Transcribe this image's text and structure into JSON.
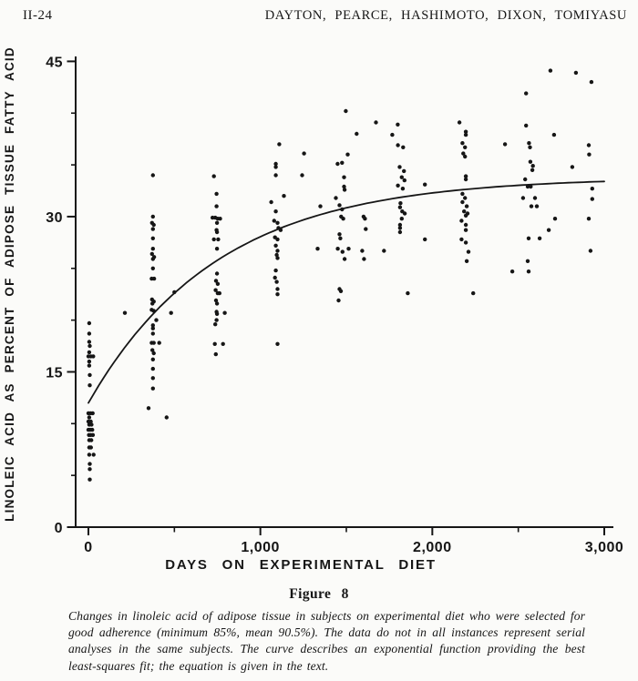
{
  "page": {
    "page_number": "II-24",
    "running_head": "DAYTON, PEARCE, HASHIMOTO, DIXON, TOMIYASU"
  },
  "figure": {
    "label": "Figure 8",
    "caption": "Changes in linoleic acid of adipose tissue in subjects on experimental diet who were selected for good adherence (minimum 85%, mean 90.5%). The data do not in all instances represent serial analyses in the same subjects. The curve describes an exponential function providing the best least-squares fit; the equation is given in the text."
  },
  "chart_data": {
    "type": "scatter",
    "title": "",
    "xlabel": "DAYS ON EXPERIMENTAL DIET",
    "ylabel": "LINOLEIC ACID AS PERCENT OF ADIPOSE TISSUE FATTY ACID",
    "xlim": [
      0,
      3000
    ],
    "ylim": [
      0,
      45
    ],
    "x_ticks": [
      0,
      1000,
      2000,
      3000
    ],
    "x_tick_labels": [
      "0",
      "1,000",
      "2,000",
      "3,000"
    ],
    "x_minor_ticks": [
      500,
      1500,
      2500
    ],
    "y_ticks": [
      0,
      15,
      30,
      45
    ],
    "y_tick_labels": [
      "0",
      "15",
      "30",
      "45"
    ],
    "y_minor_ticks": [
      5,
      10,
      20,
      25,
      35,
      40
    ],
    "grid": false,
    "legend": "none",
    "ink_color": "#161616",
    "marker_radius": 2.2,
    "curve": {
      "type": "exponential",
      "formula": "y = 33.8 - 21.8 * exp(-x / 750)",
      "a": 33.8,
      "b": 21.8,
      "tau": 750,
      "x_start": 0,
      "x_end": 3000
    },
    "points": [
      [
        5,
        19.7
      ],
      [
        5,
        18.7
      ],
      [
        5,
        17.9
      ],
      [
        8,
        17.5
      ],
      [
        5,
        16.9
      ],
      [
        0,
        16.5
      ],
      [
        14,
        16.5
      ],
      [
        28,
        16.5
      ],
      [
        5,
        16.0
      ],
      [
        5,
        15.6
      ],
      [
        8,
        14.7
      ],
      [
        8,
        13.7
      ],
      [
        0,
        11.0
      ],
      [
        12,
        11.0
      ],
      [
        25,
        11.0
      ],
      [
        5,
        10.6
      ],
      [
        0,
        10.2
      ],
      [
        14,
        10.2
      ],
      [
        5,
        9.9
      ],
      [
        18,
        9.9
      ],
      [
        0,
        9.4
      ],
      [
        10,
        9.4
      ],
      [
        22,
        9.4
      ],
      [
        3,
        8.9
      ],
      [
        14,
        8.9
      ],
      [
        26,
        8.9
      ],
      [
        5,
        8.4
      ],
      [
        17,
        8.4
      ],
      [
        5,
        7.7
      ],
      [
        15,
        7.7
      ],
      [
        5,
        7.0
      ],
      [
        30,
        7.0
      ],
      [
        8,
        6.1
      ],
      [
        8,
        5.6
      ],
      [
        8,
        4.6
      ],
      [
        212,
        20.7
      ],
      [
        375,
        34.0
      ],
      [
        375,
        30.0
      ],
      [
        370,
        29.4
      ],
      [
        380,
        29.2
      ],
      [
        375,
        28.8
      ],
      [
        375,
        27.9
      ],
      [
        375,
        26.9
      ],
      [
        370,
        26.4
      ],
      [
        382,
        26.1
      ],
      [
        375,
        25.9
      ],
      [
        375,
        25.0
      ],
      [
        368,
        24.0
      ],
      [
        382,
        24.0
      ],
      [
        370,
        22.0
      ],
      [
        380,
        21.8
      ],
      [
        372,
        21.6
      ],
      [
        368,
        21.0
      ],
      [
        380,
        20.9
      ],
      [
        395,
        20.0
      ],
      [
        375,
        19.5
      ],
      [
        375,
        19.2
      ],
      [
        375,
        18.7
      ],
      [
        368,
        17.8
      ],
      [
        380,
        17.8
      ],
      [
        412,
        17.8
      ],
      [
        372,
        17.1
      ],
      [
        380,
        16.8
      ],
      [
        375,
        16.2
      ],
      [
        375,
        15.3
      ],
      [
        375,
        14.4
      ],
      [
        375,
        13.4
      ],
      [
        350,
        11.5
      ],
      [
        455,
        10.6
      ],
      [
        500,
        22.7
      ],
      [
        481,
        20.7
      ],
      [
        730,
        33.9
      ],
      [
        745,
        32.2
      ],
      [
        745,
        31.0
      ],
      [
        722,
        29.9
      ],
      [
        738,
        29.9
      ],
      [
        752,
        29.8
      ],
      [
        766,
        29.8
      ],
      [
        748,
        29.4
      ],
      [
        745,
        28.7
      ],
      [
        748,
        28.5
      ],
      [
        730,
        27.8
      ],
      [
        755,
        27.8
      ],
      [
        748,
        26.9
      ],
      [
        748,
        24.5
      ],
      [
        742,
        23.8
      ],
      [
        752,
        23.5
      ],
      [
        740,
        22.9
      ],
      [
        752,
        22.6
      ],
      [
        762,
        22.6
      ],
      [
        742,
        21.9
      ],
      [
        748,
        21.6
      ],
      [
        745,
        20.8
      ],
      [
        793,
        20.7
      ],
      [
        748,
        20.6
      ],
      [
        745,
        20.0
      ],
      [
        738,
        19.6
      ],
      [
        735,
        17.7
      ],
      [
        783,
        17.7
      ],
      [
        741,
        16.7
      ],
      [
        1110,
        37.0
      ],
      [
        1090,
        35.1
      ],
      [
        1090,
        34.8
      ],
      [
        1090,
        34.0
      ],
      [
        1137,
        32.0
      ],
      [
        1063,
        31.4
      ],
      [
        1090,
        30.5
      ],
      [
        1080,
        29.6
      ],
      [
        1100,
        29.4
      ],
      [
        1105,
        28.9
      ],
      [
        1118,
        28.7
      ],
      [
        1085,
        28.0
      ],
      [
        1100,
        27.8
      ],
      [
        1090,
        27.2
      ],
      [
        1100,
        26.7
      ],
      [
        1095,
        26.3
      ],
      [
        1100,
        26.0
      ],
      [
        1090,
        24.8
      ],
      [
        1085,
        24.1
      ],
      [
        1095,
        23.7
      ],
      [
        1100,
        23.0
      ],
      [
        1100,
        22.5
      ],
      [
        1100,
        17.7
      ],
      [
        1254,
        36.1
      ],
      [
        1243,
        34.0
      ],
      [
        1349,
        31.0
      ],
      [
        1333,
        26.9
      ],
      [
        1497,
        40.2
      ],
      [
        1560,
        38.0
      ],
      [
        1508,
        36.0
      ],
      [
        1475,
        35.2
      ],
      [
        1449,
        35.1
      ],
      [
        1487,
        33.8
      ],
      [
        1487,
        32.9
      ],
      [
        1490,
        32.6
      ],
      [
        1439,
        31.8
      ],
      [
        1460,
        31.1
      ],
      [
        1475,
        30.7
      ],
      [
        1470,
        30.0
      ],
      [
        1482,
        29.8
      ],
      [
        1460,
        28.3
      ],
      [
        1465,
        27.9
      ],
      [
        1450,
        26.9
      ],
      [
        1478,
        26.6
      ],
      [
        1490,
        25.9
      ],
      [
        1460,
        23.0
      ],
      [
        1468,
        22.8
      ],
      [
        1455,
        21.9
      ],
      [
        1672,
        39.1
      ],
      [
        1600,
        30.0
      ],
      [
        1608,
        29.8
      ],
      [
        1613,
        28.8
      ],
      [
        1513,
        26.9
      ],
      [
        1592,
        26.7
      ],
      [
        1719,
        26.7
      ],
      [
        1603,
        25.9
      ],
      [
        1799,
        38.9
      ],
      [
        1767,
        37.9
      ],
      [
        1800,
        36.9
      ],
      [
        1830,
        36.7
      ],
      [
        1810,
        34.8
      ],
      [
        1835,
        34.4
      ],
      [
        1822,
        33.8
      ],
      [
        1838,
        33.5
      ],
      [
        1800,
        33.0
      ],
      [
        1828,
        32.7
      ],
      [
        1815,
        31.3
      ],
      [
        1812,
        30.9
      ],
      [
        1825,
        30.5
      ],
      [
        1840,
        30.3
      ],
      [
        1822,
        29.8
      ],
      [
        1812,
        29.2
      ],
      [
        1812,
        28.9
      ],
      [
        1812,
        28.5
      ],
      [
        1857,
        22.6
      ],
      [
        1957,
        33.1
      ],
      [
        1957,
        27.8
      ],
      [
        2158,
        39.1
      ],
      [
        2195,
        38.2
      ],
      [
        2195,
        37.9
      ],
      [
        2175,
        37.1
      ],
      [
        2190,
        36.7
      ],
      [
        2180,
        36.1
      ],
      [
        2190,
        35.8
      ],
      [
        2195,
        33.9
      ],
      [
        2195,
        33.6
      ],
      [
        2175,
        32.2
      ],
      [
        2190,
        31.8
      ],
      [
        2175,
        31.4
      ],
      [
        2200,
        31.0
      ],
      [
        2185,
        30.5
      ],
      [
        2205,
        30.3
      ],
      [
        2195,
        30.1
      ],
      [
        2170,
        29.6
      ],
      [
        2195,
        29.2
      ],
      [
        2195,
        28.7
      ],
      [
        2170,
        27.8
      ],
      [
        2195,
        27.5
      ],
      [
        2210,
        26.6
      ],
      [
        2200,
        25.7
      ],
      [
        2238,
        22.6
      ],
      [
        2423,
        37.0
      ],
      [
        2465,
        24.7
      ],
      [
        2545,
        41.9
      ],
      [
        2545,
        38.8
      ],
      [
        2562,
        37.1
      ],
      [
        2568,
        36.7
      ],
      [
        2570,
        35.3
      ],
      [
        2585,
        34.9
      ],
      [
        2582,
        34.5
      ],
      [
        2540,
        33.6
      ],
      [
        2555,
        32.9
      ],
      [
        2572,
        32.9
      ],
      [
        2528,
        31.8
      ],
      [
        2597,
        31.8
      ],
      [
        2576,
        31.0
      ],
      [
        2608,
        31.0
      ],
      [
        2560,
        27.9
      ],
      [
        2624,
        27.9
      ],
      [
        2555,
        25.7
      ],
      [
        2560,
        24.7
      ],
      [
        2687,
        44.1
      ],
      [
        2835,
        43.9
      ],
      [
        2925,
        43.0
      ],
      [
        2708,
        37.9
      ],
      [
        2910,
        36.9
      ],
      [
        2912,
        36.0
      ],
      [
        2814,
        34.8
      ],
      [
        2714,
        29.8
      ],
      [
        2910,
        29.8
      ],
      [
        2677,
        28.7
      ],
      [
        2930,
        32.7
      ],
      [
        2930,
        31.7
      ],
      [
        2920,
        26.7
      ]
    ]
  }
}
